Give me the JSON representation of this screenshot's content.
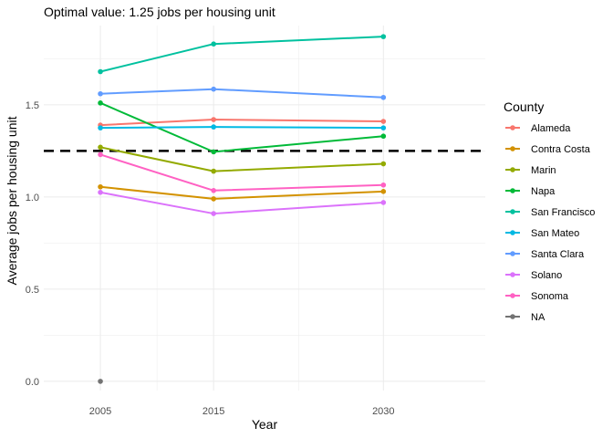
{
  "chart_data": {
    "type": "line",
    "title": "Optimal value: 1.25 jobs per housing unit",
    "xlabel": "Year",
    "ylabel": "Average jobs per housing unit",
    "x": [
      2005,
      2015,
      2030
    ],
    "x_tick_labels": [
      "2005",
      "2015",
      "2030"
    ],
    "y_ticks": [
      0.0,
      0.5,
      1.0,
      1.5
    ],
    "y_tick_labels": [
      "0.0",
      "0.5",
      "1.0",
      "1.5"
    ],
    "xlim": [
      2000,
      2039
    ],
    "ylim": [
      -0.05,
      1.93
    ],
    "grid": true,
    "reference_line": {
      "y": 1.25,
      "style": "dashed",
      "color": "#000000"
    },
    "legend": {
      "title": "County",
      "position": "right"
    },
    "series": [
      {
        "name": "Alameda",
        "color": "#F8766D",
        "values": [
          1.39,
          1.42,
          1.41
        ]
      },
      {
        "name": "Contra Costa",
        "color": "#D39200",
        "values": [
          1.055,
          0.99,
          1.03
        ]
      },
      {
        "name": "Marin",
        "color": "#93AA00",
        "values": [
          1.27,
          1.14,
          1.18
        ]
      },
      {
        "name": "Napa",
        "color": "#00BA38",
        "values": [
          1.51,
          1.245,
          1.33
        ]
      },
      {
        "name": "San Francisco",
        "color": "#00C19F",
        "values": [
          1.68,
          1.83,
          1.87
        ]
      },
      {
        "name": "San Mateo",
        "color": "#00B9E3",
        "values": [
          1.375,
          1.38,
          1.375
        ]
      },
      {
        "name": "Santa Clara",
        "color": "#619CFF",
        "values": [
          1.56,
          1.585,
          1.54
        ]
      },
      {
        "name": "Solano",
        "color": "#DB72FB",
        "values": [
          1.025,
          0.91,
          0.97
        ]
      },
      {
        "name": "Sonoma",
        "color": "#FF61C3",
        "values": [
          1.23,
          1.035,
          1.065
        ]
      },
      {
        "name": "NA",
        "color": "#737373",
        "values": [
          0.0,
          null,
          null
        ]
      }
    ]
  }
}
